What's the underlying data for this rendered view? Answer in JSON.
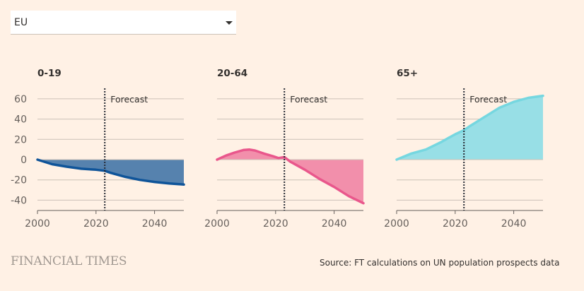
{
  "selector": {
    "selected": "EU",
    "icon": "caret-down-icon"
  },
  "brand": "FINANCIAL TIMES",
  "source": "Source: FT calculations on UN population prospects data",
  "chart_data": [
    {
      "type": "area",
      "title": "0-19",
      "color_line": "#0f5499",
      "color_fill": "#5682ae",
      "x": [
        2000,
        2005,
        2010,
        2015,
        2020,
        2023,
        2025,
        2030,
        2035,
        2040,
        2045,
        2050
      ],
      "values": [
        0,
        -4.5,
        -7,
        -9,
        -10,
        -11,
        -13,
        -17,
        -20,
        -22,
        -23.5,
        -24.5
      ],
      "forecast_start": 2023,
      "forecast_label": "Forecast",
      "xlim": [
        2000,
        2050
      ],
      "ylim": [
        -50,
        70
      ],
      "xticks": [
        2000,
        2020,
        2040
      ],
      "yticks": [
        60,
        40,
        20,
        0,
        -20,
        -40
      ],
      "ytick_labels": [
        "60",
        "40",
        "20",
        "0",
        "-20",
        "-40"
      ],
      "xtick_labels": [
        "2000",
        "2020",
        "2040"
      ]
    },
    {
      "type": "area",
      "title": "20-64",
      "color_line": "#e9578c",
      "color_fill": "#f28fab",
      "x": [
        2000,
        2003,
        2006,
        2009,
        2011,
        2013,
        2016,
        2019,
        2021,
        2023,
        2025,
        2030,
        2035,
        2040,
        2045,
        2050
      ],
      "values": [
        0,
        4,
        7,
        9.5,
        10,
        9,
        6,
        3.5,
        1.5,
        2.5,
        -2,
        -10,
        -19,
        -27,
        -36,
        -43
      ],
      "forecast_start": 2023,
      "forecast_label": "Forecast",
      "xlim": [
        2000,
        2050
      ],
      "ylim": [
        -50,
        70
      ],
      "xticks": [
        2000,
        2020,
        2040
      ],
      "xtick_labels": [
        "2000",
        "2020",
        "2040"
      ]
    },
    {
      "type": "area",
      "title": "65+",
      "color_line": "#76d7e0",
      "color_fill": "#98dfe6",
      "x": [
        2000,
        2005,
        2010,
        2015,
        2020,
        2023,
        2025,
        2030,
        2035,
        2040,
        2045,
        2050
      ],
      "values": [
        0,
        6,
        10,
        17,
        25,
        29,
        33,
        42,
        51,
        57,
        61,
        63
      ],
      "forecast_start": 2023,
      "forecast_label": "Forecast",
      "xlim": [
        2000,
        2050
      ],
      "ylim": [
        -50,
        70
      ],
      "xticks": [
        2000,
        2020,
        2040
      ],
      "xtick_labels": [
        "2000",
        "2020",
        "2040"
      ]
    }
  ]
}
